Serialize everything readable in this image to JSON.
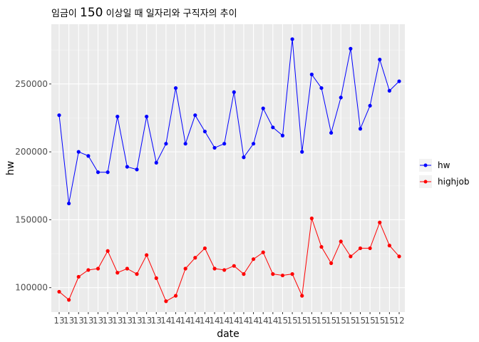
{
  "chart_data": {
    "type": "line",
    "title_parts": [
      "임금이 ",
      "150",
      " 이상일 때 일자리와 구직자의 추이"
    ],
    "xlabel": "date",
    "ylabel": "hw",
    "x": [
      "1301",
      "1302",
      "1303",
      "1304",
      "1305",
      "1306",
      "1307",
      "1308",
      "1309",
      "1310",
      "1311",
      "1312",
      "1401",
      "1402",
      "1403",
      "1404",
      "1405",
      "1406",
      "1407",
      "1408",
      "1409",
      "1410",
      "1411",
      "1412",
      "1501",
      "1502",
      "1503",
      "1504",
      "1505",
      "1506",
      "1507",
      "1508",
      "1509",
      "1510",
      "1511",
      "1512"
    ],
    "x_tick_text": [
      "13",
      "13",
      "13",
      "13",
      "13",
      "13",
      "13",
      "13",
      "13",
      "13",
      "13",
      "14",
      "14",
      "14",
      "14",
      "14",
      "14",
      "14",
      "14",
      "14",
      "14",
      "14",
      "14",
      "15",
      "15",
      "15",
      "15",
      "15",
      "15",
      "15",
      "15",
      "15",
      "15",
      "15",
      "15",
      "12"
    ],
    "ylim": [
      82000,
      294000
    ],
    "yticks": [
      100000,
      150000,
      200000,
      250000
    ],
    "ytick_labels": [
      "100000",
      "150000",
      "200000",
      "250000"
    ],
    "grid": true,
    "legend_position": "right",
    "series": [
      {
        "name": "hw",
        "color": "#0000ff",
        "values": [
          227000,
          162000,
          200000,
          197000,
          185000,
          185000,
          226000,
          189000,
          187000,
          226000,
          192000,
          206000,
          247000,
          206000,
          227000,
          215000,
          203000,
          206000,
          244000,
          196000,
          206000,
          232000,
          218000,
          212000,
          283000,
          200000,
          257000,
          247000,
          214000,
          240000,
          276000,
          217000,
          234000,
          268000,
          245000,
          252000
        ]
      },
      {
        "name": "highjob",
        "color": "#ff0000",
        "values": [
          97000,
          91000,
          108000,
          113000,
          114000,
          127000,
          111000,
          114000,
          110000,
          124000,
          107000,
          90000,
          94000,
          114000,
          122000,
          129000,
          114000,
          113000,
          116000,
          110000,
          121000,
          126000,
          110000,
          109000,
          110000,
          94000,
          151000,
          130000,
          118000,
          134000,
          123000,
          129000,
          129000,
          148000,
          131000,
          123000
        ]
      }
    ]
  }
}
